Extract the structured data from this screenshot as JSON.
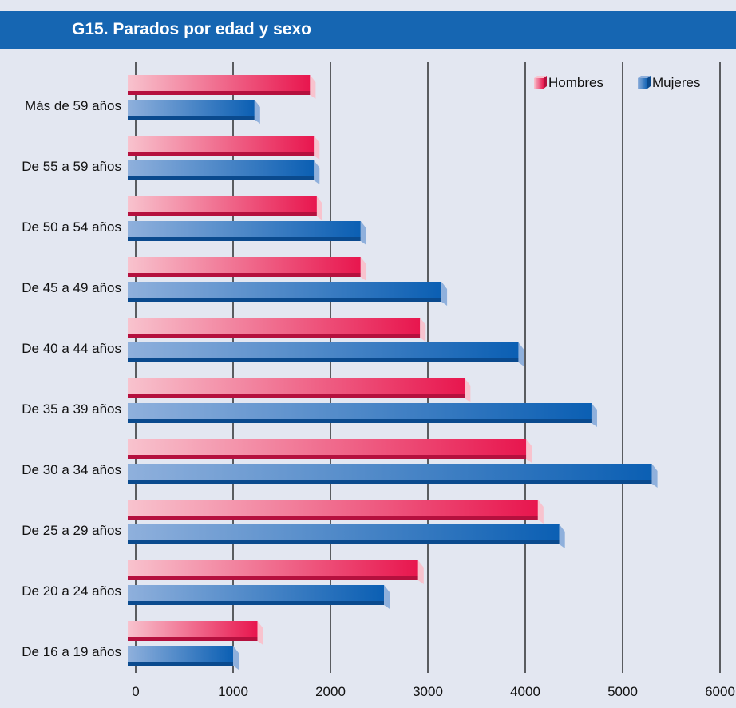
{
  "header": {
    "title": "G15. Parados por edad y sexo"
  },
  "colors": {
    "background": "#e3e7f1",
    "header": "#1666b2",
    "hombres_light": "#f8c3ce",
    "hombres_dark": "#e8164e",
    "hombres_shadow": "#b5103e",
    "mujeres_light": "#8fb0dc",
    "mujeres_dark": "#0b5fb3",
    "mujeres_shadow": "#0a4a8e",
    "gridline": "#000000"
  },
  "legend": {
    "placement": "top-right",
    "items": [
      {
        "label": "Hombres",
        "icon": "pink-cube-icon"
      },
      {
        "label": "Mujeres",
        "icon": "blue-cube-icon"
      }
    ]
  },
  "chart_data": {
    "type": "bar",
    "orientation": "horizontal",
    "title": "G15. Parados por edad y sexo",
    "categories": [
      "Más de 59 años",
      "De 55 a 59 años",
      "De 50 a 54 años",
      "De 45 a 49 años",
      "De 40 a 44 años",
      "De 35 a 39 años",
      "De 30 a 34 años",
      "De 25 a 29 años",
      "De 20 a 24 años",
      "De 16 a 19 años"
    ],
    "series": [
      {
        "name": "Hombres",
        "values": [
          1790,
          1830,
          1860,
          2310,
          2920,
          3380,
          4010,
          4130,
          2900,
          1250
        ]
      },
      {
        "name": "Mujeres",
        "values": [
          1220,
          1830,
          2310,
          3140,
          3930,
          4680,
          5300,
          4350,
          2550,
          1000
        ]
      }
    ],
    "xlim": [
      0,
      6000
    ],
    "xticks": [
      "0",
      "1000",
      "2000",
      "3000",
      "4000",
      "5000",
      "6000"
    ],
    "grid": true
  }
}
